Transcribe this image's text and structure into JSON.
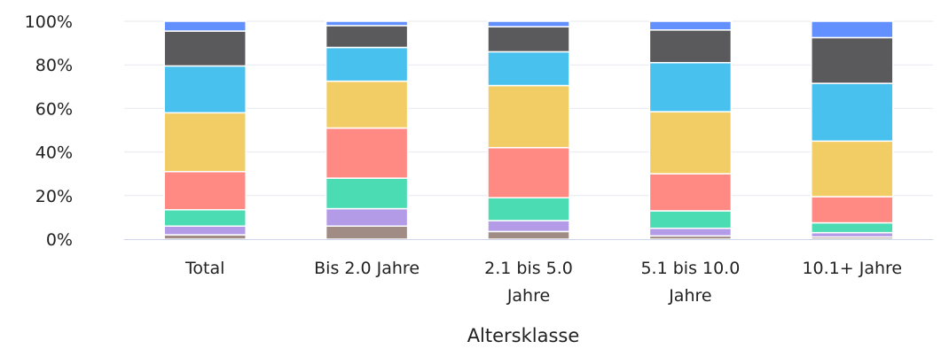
{
  "chart_data": {
    "type": "bar",
    "stacked": true,
    "normalized": true,
    "title": "",
    "xlabel": "Altersklasse",
    "ylabel": "",
    "ylim": [
      0,
      100
    ],
    "yticks": [
      "0%",
      "20%",
      "40%",
      "60%",
      "80%",
      "100%"
    ],
    "grid": true,
    "legend": "none",
    "categories": [
      [
        "Total"
      ],
      [
        "Bis 2.0 Jahre"
      ],
      [
        "2.1 bis 5.0",
        "Jahre"
      ],
      [
        "5.1 bis 10.0",
        "Jahre"
      ],
      [
        "10.1+ Jahre"
      ]
    ],
    "series": [
      {
        "color": "#a08c85",
        "values": [
          2,
          6,
          3.5,
          1.5,
          1
        ]
      },
      {
        "color": "#b39be8",
        "values": [
          4,
          8,
          5,
          3.5,
          2
        ]
      },
      {
        "color": "#4bdcb4",
        "values": [
          7.5,
          14,
          10.5,
          8,
          4.5
        ]
      },
      {
        "color": "#ff8a84",
        "values": [
          17.5,
          23,
          23,
          17,
          12
        ]
      },
      {
        "color": "#f2cd66",
        "values": [
          27,
          21.5,
          28.5,
          28.5,
          25.5
        ]
      },
      {
        "color": "#48c1ef",
        "values": [
          21.5,
          15.5,
          15.5,
          22.5,
          26.5
        ]
      },
      {
        "color": "#5a5a5c",
        "values": [
          16,
          10,
          11.5,
          15,
          21
        ]
      },
      {
        "color": "#6290ff",
        "values": [
          4.5,
          2,
          2.5,
          4,
          7.5
        ]
      }
    ]
  }
}
